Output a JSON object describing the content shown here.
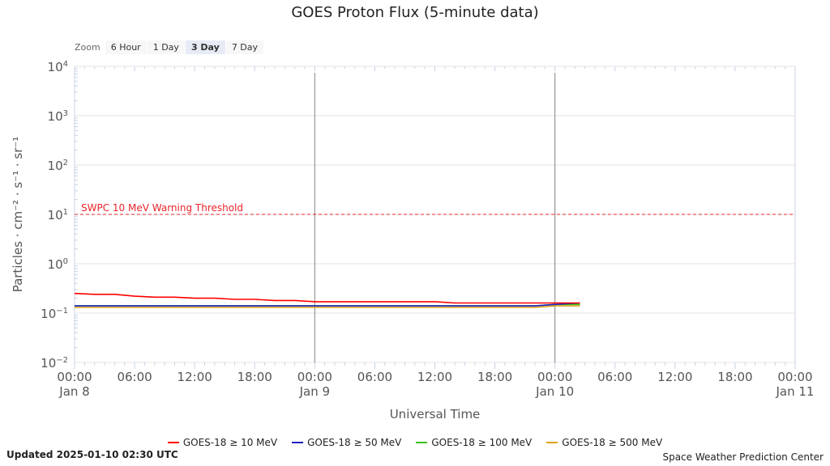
{
  "chart_data": {
    "type": "line",
    "title": "GOES Proton Flux (5-minute data)",
    "ylabel": "Particles · cm⁻² · s⁻¹ · sr⁻¹",
    "xlabel": "Universal Time",
    "yscale": "log",
    "yticks": [
      {
        "base": "10",
        "exp": "4"
      },
      {
        "base": "10",
        "exp": "3"
      },
      {
        "base": "10",
        "exp": "2"
      },
      {
        "base": "10",
        "exp": "1"
      },
      {
        "base": "10",
        "exp": "0"
      },
      {
        "base": "10",
        "exp": "−1"
      },
      {
        "base": "10",
        "exp": "−2"
      }
    ],
    "ylim_exp": [
      -2,
      4
    ],
    "xlim_hours": [
      0,
      72
    ],
    "xticks": [
      {
        "h": 0,
        "time": "00:00",
        "day": "Jan 8"
      },
      {
        "h": 6,
        "time": "06:00",
        "day": ""
      },
      {
        "h": 12,
        "time": "12:00",
        "day": ""
      },
      {
        "h": 18,
        "time": "18:00",
        "day": ""
      },
      {
        "h": 24,
        "time": "00:00",
        "day": "Jan 9"
      },
      {
        "h": 30,
        "time": "06:00",
        "day": ""
      },
      {
        "h": 36,
        "time": "12:00",
        "day": ""
      },
      {
        "h": 42,
        "time": "18:00",
        "day": ""
      },
      {
        "h": 48,
        "time": "00:00",
        "day": "Jan 10"
      },
      {
        "h": 54,
        "time": "06:00",
        "day": ""
      },
      {
        "h": 60,
        "time": "12:00",
        "day": ""
      },
      {
        "h": 66,
        "time": "18:00",
        "day": ""
      },
      {
        "h": 72,
        "time": "00:00",
        "day": "Jan 11"
      }
    ],
    "day_lines_hours": [
      24,
      48
    ],
    "threshold": {
      "label": "SWPC 10 MeV Warning Threshold",
      "value": 10,
      "color": "#e8242a"
    },
    "grid": true,
    "legend_position": "bottom",
    "x_hours": [
      0,
      2,
      4,
      6,
      8,
      10,
      12,
      14,
      16,
      18,
      20,
      22,
      24,
      26,
      28,
      30,
      32,
      34,
      36,
      38,
      40,
      42,
      44,
      46,
      48,
      50.5
    ],
    "series": [
      {
        "name": "GOES-18 ≥ 10 MeV",
        "color": "#ff0000",
        "values": [
          0.25,
          0.24,
          0.24,
          0.22,
          0.21,
          0.21,
          0.2,
          0.2,
          0.19,
          0.19,
          0.18,
          0.18,
          0.17,
          0.17,
          0.17,
          0.17,
          0.17,
          0.17,
          0.17,
          0.16,
          0.16,
          0.16,
          0.16,
          0.16,
          0.16,
          0.16
        ]
      },
      {
        "name": "GOES-18 ≥ 50 MeV",
        "color": "#1f1fbf",
        "values": [
          0.14,
          0.14,
          0.14,
          0.14,
          0.14,
          0.14,
          0.14,
          0.14,
          0.14,
          0.14,
          0.14,
          0.14,
          0.14,
          0.14,
          0.14,
          0.14,
          0.14,
          0.14,
          0.14,
          0.14,
          0.14,
          0.14,
          0.14,
          0.14,
          0.15,
          0.16
        ]
      },
      {
        "name": "GOES-18 ≥ 100 MeV",
        "color": "#39c21c",
        "values": [
          0.14,
          0.14,
          0.14,
          0.14,
          0.14,
          0.14,
          0.14,
          0.14,
          0.14,
          0.14,
          0.14,
          0.14,
          0.14,
          0.14,
          0.14,
          0.14,
          0.14,
          0.14,
          0.14,
          0.14,
          0.14,
          0.14,
          0.14,
          0.14,
          0.15,
          0.15
        ]
      },
      {
        "name": "GOES-18 ≥ 500 MeV",
        "color": "#e0a21a",
        "values": [
          0.13,
          0.13,
          0.13,
          0.13,
          0.13,
          0.13,
          0.13,
          0.13,
          0.13,
          0.13,
          0.13,
          0.13,
          0.13,
          0.13,
          0.13,
          0.13,
          0.13,
          0.13,
          0.13,
          0.13,
          0.13,
          0.13,
          0.13,
          0.13,
          0.14,
          0.14
        ]
      }
    ]
  },
  "zoom": {
    "label": "Zoom",
    "buttons": [
      "6 Hour",
      "1 Day",
      "3 Day",
      "7 Day"
    ],
    "active": "3 Day"
  },
  "footer": {
    "updated": "Updated 2025-01-10 02:30 UTC",
    "credit": "Space Weather Prediction Center"
  }
}
